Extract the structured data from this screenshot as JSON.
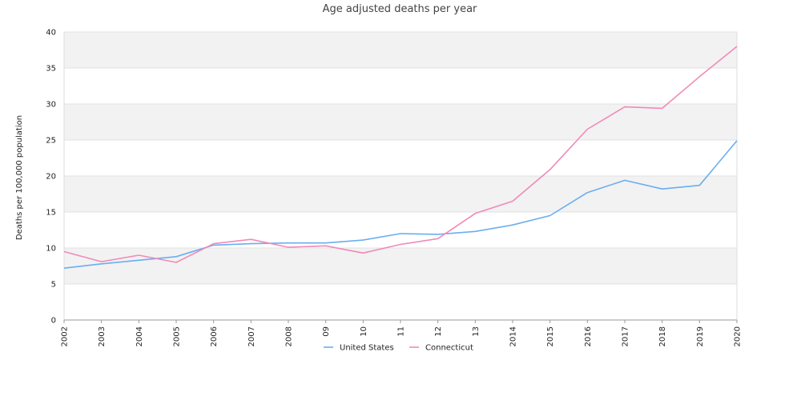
{
  "chart_data": {
    "type": "line",
    "title": "Age adjusted deaths per year",
    "xlabel": "",
    "ylabel": "Deaths per 100,000 population",
    "categories": [
      "2002",
      "2003",
      "2004",
      "2005",
      "2006",
      "2007",
      "2008",
      "09",
      "10",
      "11",
      "12",
      "13",
      "2014",
      "2015",
      "2016",
      "2017",
      "2018",
      "2019",
      "2020"
    ],
    "ylim": [
      0,
      40
    ],
    "yticks": [
      0,
      5,
      10,
      15,
      20,
      25,
      30,
      35,
      40
    ],
    "grid": "alternating horizontal bands",
    "legend_position": "bottom",
    "series": [
      {
        "name": "United States",
        "color": "#6aaef0",
        "values": [
          7.2,
          7.8,
          8.3,
          8.8,
          10.4,
          10.6,
          10.7,
          10.7,
          11.1,
          12.0,
          11.9,
          12.3,
          13.2,
          14.5,
          17.7,
          19.4,
          18.2,
          18.7,
          24.9
        ]
      },
      {
        "name": "Connecticut",
        "color": "#f08ab8",
        "values": [
          9.5,
          8.1,
          9.0,
          8.0,
          10.6,
          11.2,
          10.1,
          10.3,
          9.3,
          10.5,
          11.3,
          14.8,
          16.5,
          20.9,
          26.5,
          29.6,
          29.4,
          33.8,
          38.0
        ]
      }
    ]
  }
}
